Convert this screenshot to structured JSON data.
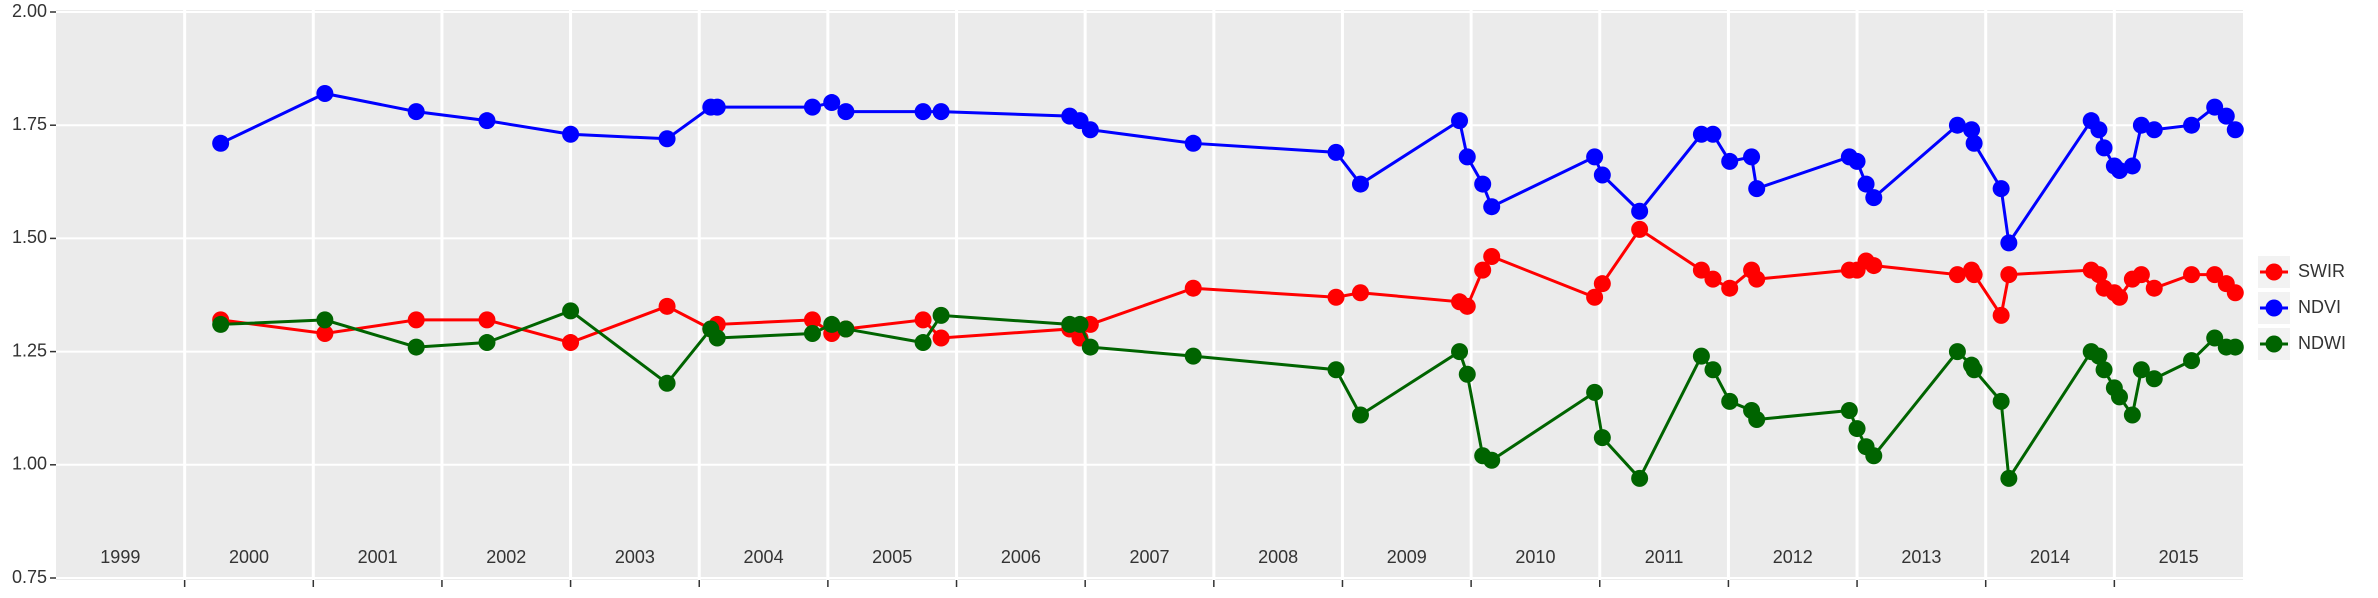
{
  "chart_data": {
    "type": "line",
    "x": [
      2000.28,
      2001.09,
      2001.8,
      2002.35,
      2003.0,
      2003.75,
      2004.09,
      2004.14,
      2004.88,
      2005.03,
      2005.14,
      2005.74,
      2005.88,
      2006.88,
      2006.96,
      2007.04,
      2007.84,
      2008.95,
      2009.14,
      2009.91,
      2009.97,
      2010.09,
      2010.16,
      2010.96,
      2011.02,
      2011.31,
      2011.79,
      2011.88,
      2012.01,
      2012.18,
      2012.22,
      2012.94,
      2013.0,
      2013.07,
      2013.13,
      2013.78,
      2013.89,
      2013.91,
      2014.12,
      2014.18,
      2014.82,
      2014.88,
      2014.92,
      2015.0,
      2015.04,
      2015.14,
      2015.21,
      2015.31,
      2015.6,
      2015.78,
      2015.87,
      2015.94
    ],
    "series": [
      {
        "name": "SWIR",
        "color": "#ff0000",
        "values": [
          1.32,
          1.29,
          1.32,
          1.32,
          1.27,
          1.35,
          1.3,
          1.31,
          1.32,
          1.29,
          1.3,
          1.32,
          1.28,
          1.3,
          1.28,
          1.31,
          1.39,
          1.37,
          1.38,
          1.36,
          1.35,
          1.43,
          1.46,
          1.37,
          1.4,
          1.52,
          1.43,
          1.41,
          1.39,
          1.43,
          1.41,
          1.43,
          1.43,
          1.45,
          1.44,
          1.42,
          1.43,
          1.42,
          1.33,
          1.42,
          1.43,
          1.42,
          1.39,
          1.38,
          1.37,
          1.41,
          1.42,
          1.39,
          1.42,
          1.42,
          1.4,
          1.38
        ]
      },
      {
        "name": "NDVI",
        "color": "#0000ff",
        "values": [
          1.71,
          1.82,
          1.78,
          1.76,
          1.73,
          1.72,
          1.79,
          1.79,
          1.79,
          1.8,
          1.78,
          1.78,
          1.78,
          1.77,
          1.76,
          1.74,
          1.71,
          1.69,
          1.62,
          1.76,
          1.68,
          1.62,
          1.57,
          1.68,
          1.64,
          1.56,
          1.73,
          1.73,
          1.67,
          1.68,
          1.61,
          1.68,
          1.67,
          1.62,
          1.59,
          1.75,
          1.74,
          1.71,
          1.61,
          1.49,
          1.76,
          1.74,
          1.7,
          1.66,
          1.65,
          1.66,
          1.75,
          1.74,
          1.75,
          1.79,
          1.77,
          1.74
        ]
      },
      {
        "name": "NDWI",
        "color": "#006400",
        "values": [
          1.31,
          1.32,
          1.26,
          1.27,
          1.34,
          1.18,
          1.3,
          1.28,
          1.29,
          1.31,
          1.3,
          1.27,
          1.33,
          1.31,
          1.31,
          1.26,
          1.24,
          1.21,
          1.11,
          1.25,
          1.2,
          1.02,
          1.01,
          1.16,
          1.06,
          0.97,
          1.24,
          1.21,
          1.14,
          1.12,
          1.1,
          1.12,
          1.08,
          1.04,
          1.02,
          1.25,
          1.22,
          1.21,
          1.14,
          0.97,
          1.25,
          1.24,
          1.21,
          1.17,
          1.15,
          1.11,
          1.21,
          1.19,
          1.23,
          1.28,
          1.26,
          1.26
        ]
      }
    ],
    "xlim": [
      1999,
      2016
    ],
    "xticks": [
      2000,
      2001,
      2002,
      2003,
      2004,
      2005,
      2006,
      2007,
      2008,
      2009,
      2010,
      2011,
      2012,
      2013,
      2014,
      2015
    ],
    "year_labels": [
      {
        "value": 1999.5,
        "label": "1999"
      },
      {
        "value": 2000.5,
        "label": "2000"
      },
      {
        "value": 2001.5,
        "label": "2001"
      },
      {
        "value": 2002.5,
        "label": "2002"
      },
      {
        "value": 2003.5,
        "label": "2003"
      },
      {
        "value": 2004.5,
        "label": "2004"
      },
      {
        "value": 2005.5,
        "label": "2005"
      },
      {
        "value": 2006.5,
        "label": "2006"
      },
      {
        "value": 2007.5,
        "label": "2007"
      },
      {
        "value": 2008.5,
        "label": "2008"
      },
      {
        "value": 2009.5,
        "label": "2009"
      },
      {
        "value": 2010.5,
        "label": "2010"
      },
      {
        "value": 2011.5,
        "label": "2011"
      },
      {
        "value": 2012.5,
        "label": "2012"
      },
      {
        "value": 2013.5,
        "label": "2013"
      },
      {
        "value": 2014.5,
        "label": "2014"
      },
      {
        "value": 2015.5,
        "label": "2015"
      }
    ],
    "ylim": [
      0.75,
      2.0
    ],
    "yticks": [
      {
        "value": 0.75,
        "label": "0.75"
      },
      {
        "value": 1.0,
        "label": "1.00"
      },
      {
        "value": 1.25,
        "label": "1.25"
      },
      {
        "value": 1.5,
        "label": "1.50"
      },
      {
        "value": 1.75,
        "label": "1.75"
      },
      {
        "value": 2.0,
        "label": "2.00"
      }
    ],
    "grid": true,
    "legend": "right"
  }
}
